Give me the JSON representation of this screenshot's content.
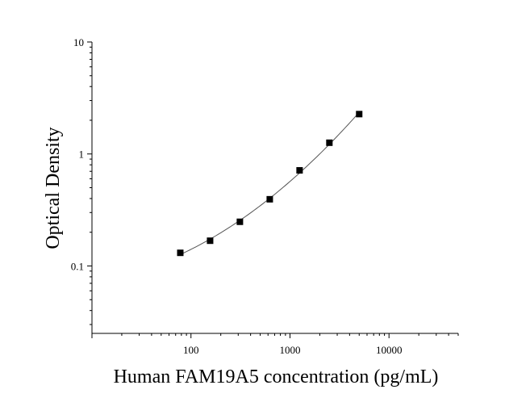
{
  "chart_data": {
    "type": "scatter",
    "title": "",
    "xlabel": "Human FAM19A5 concentration (pg/mL)",
    "ylabel": "Optical Density",
    "x_scale": "log",
    "y_scale": "log",
    "xlim": [
      10,
      50000
    ],
    "ylim": [
      0.025,
      10
    ],
    "x_ticks": [
      {
        "value": 100,
        "label": "100"
      },
      {
        "value": 1000,
        "label": "1000"
      },
      {
        "value": 10000,
        "label": "10000"
      }
    ],
    "y_ticks": [
      {
        "value": 0.1,
        "label": "0.1"
      },
      {
        "value": 1,
        "label": "1"
      },
      {
        "value": 10,
        "label": "10"
      }
    ],
    "grid": false,
    "legend": "none",
    "marker": "square",
    "colors": {
      "marker": "#000000",
      "curve": "#555555",
      "axis": "#000000"
    },
    "series": [
      {
        "x": [
          78,
          156,
          312,
          625,
          1250,
          2500,
          5000
        ],
        "y": [
          0.131,
          0.168,
          0.248,
          0.394,
          0.714,
          1.26,
          2.27
        ],
        "fit_curve": true
      }
    ]
  }
}
